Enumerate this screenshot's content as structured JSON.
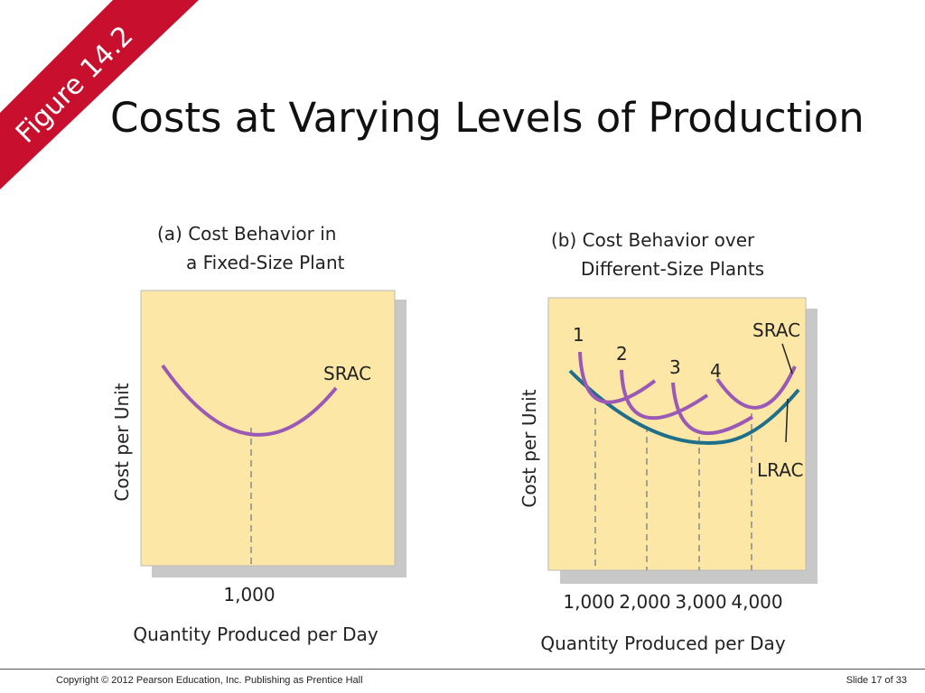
{
  "figure_label": "Figure 14.2",
  "title": "Costs at Varying Levels of Production",
  "panel_a": {
    "title_line1": "(a) Cost Behavior in",
    "title_line2": "a Fixed-Size Plant",
    "y_axis_label": "Cost per Unit",
    "x_axis_label": "Quantity Produced per Day",
    "x_tick": "1,000",
    "curve_label": "SRAC"
  },
  "panel_b": {
    "title_line1": "(b) Cost Behavior over",
    "title_line2": "Different-Size Plants",
    "y_axis_label": "Cost per Unit",
    "x_axis_label": "Quantity Produced per Day",
    "x_ticks": [
      "1,000",
      "2,000",
      "3,000",
      "4,000"
    ],
    "curve_numbers": [
      "1",
      "2",
      "3",
      "4"
    ],
    "srac_label": "SRAC",
    "lrac_label": "LRAC"
  },
  "colors": {
    "ribbon": "#c8102e",
    "plot_bg": "#fde7a6",
    "srac": "#9b59b6",
    "lrac": "#1f6f8b"
  },
  "footer": {
    "copyright": "Copyright © 2012 Pearson Education, Inc. Publishing as Prentice Hall",
    "slide": "Slide 17 of 33"
  }
}
